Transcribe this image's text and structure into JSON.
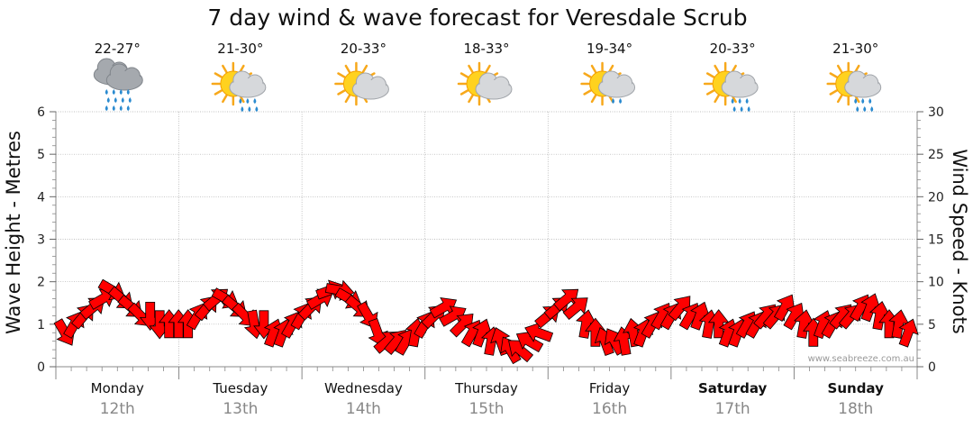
{
  "chart_data": {
    "type": "line",
    "title": "7 day wind & wave forecast for Veresdale Scrub",
    "ylabel": "Wave Height - Metres",
    "y2label": "Wind Speed - Knots",
    "ylim": [
      0,
      6
    ],
    "y2lim": [
      0,
      30
    ],
    "yticks": [
      "0",
      "1",
      "2",
      "3",
      "4",
      "5",
      "6"
    ],
    "y2ticks": [
      "0",
      "5",
      "10",
      "15",
      "20",
      "25",
      "30"
    ],
    "grid": true,
    "credit": "www.seabreeze.com.au",
    "days": [
      {
        "name": "Monday",
        "date": "12th",
        "temp": "22-27°",
        "icon": "heavy-rain-cloud-icon",
        "bold": false
      },
      {
        "name": "Tuesday",
        "date": "13th",
        "temp": "21-30°",
        "icon": "sun-cloud-rain-icon",
        "bold": false
      },
      {
        "name": "Wednesday",
        "date": "14th",
        "temp": "20-33°",
        "icon": "sun-cloud-icon",
        "bold": false
      },
      {
        "name": "Thursday",
        "date": "15th",
        "temp": "18-33°",
        "icon": "sun-cloud-icon",
        "bold": false
      },
      {
        "name": "Friday",
        "date": "16th",
        "temp": "19-34°",
        "icon": "sun-cloud-shower-icon",
        "bold": false
      },
      {
        "name": "Saturday",
        "date": "17th",
        "temp": "20-33°",
        "icon": "sun-cloud-rain-icon",
        "bold": true
      },
      {
        "name": "Sunday",
        "date": "18th",
        "temp": "21-30°",
        "icon": "sun-cloud-rain-icon",
        "bold": true
      }
    ],
    "series": [
      {
        "name": "Wind Speed",
        "unit": "knots",
        "color": "#ff0000",
        "values": [
          4,
          5,
          6,
          7,
          8,
          9,
          8,
          7,
          6,
          6,
          5,
          5,
          5,
          5,
          6,
          7,
          8,
          8,
          7,
          6,
          5,
          5,
          4,
          4,
          5,
          6,
          7,
          8,
          9,
          9,
          8,
          7,
          6,
          4,
          3,
          3,
          3,
          4,
          5,
          6,
          7,
          6,
          5,
          4,
          4,
          3,
          3,
          2,
          2,
          3,
          4,
          6,
          7,
          8,
          7,
          5,
          4,
          3,
          3,
          3,
          4,
          4,
          5,
          6,
          6,
          7,
          6,
          6,
          5,
          5,
          4,
          4,
          5,
          5,
          6,
          6,
          7,
          6,
          5,
          4,
          5,
          5,
          6,
          6,
          7,
          7,
          6,
          5,
          5,
          4
        ],
        "directions": [
          60,
          -60,
          -50,
          -40,
          -30,
          30,
          40,
          40,
          45,
          90,
          90,
          -90,
          -90,
          -90,
          -60,
          -50,
          -40,
          30,
          40,
          45,
          80,
          90,
          -70,
          -70,
          -60,
          -60,
          -45,
          -30,
          -20,
          10,
          30,
          40,
          60,
          70,
          -40,
          -50,
          -60,
          -80,
          -60,
          -45,
          -30,
          -30,
          -45,
          -60,
          -70,
          -80,
          -110,
          -120,
          -140,
          -150,
          -160,
          -40,
          -40,
          -40,
          -40,
          -80,
          -90,
          -110,
          -120,
          -100,
          -100,
          -70,
          -60,
          -60,
          -60,
          -50,
          -60,
          -70,
          -80,
          -90,
          -70,
          -70,
          -60,
          -60,
          -50,
          -50,
          -60,
          -60,
          -80,
          -90,
          -70,
          -60,
          -50,
          -50,
          -60,
          -70,
          -80,
          -90,
          -80,
          -70
        ]
      }
    ]
  }
}
